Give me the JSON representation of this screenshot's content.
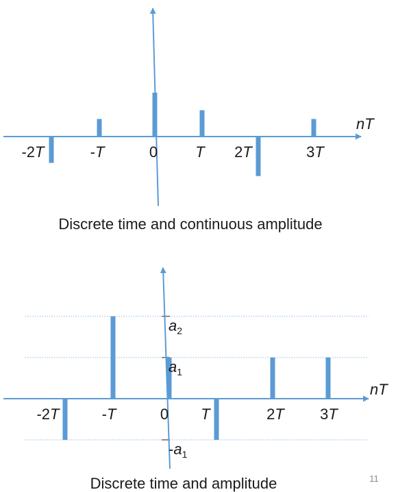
{
  "colors": {
    "axis": "#5b9bd5",
    "bar": "#5b9bd5",
    "level_line": "#8fb8e0",
    "text": "#1a1a1a"
  },
  "figure1": {
    "axis_label": "nT",
    "tick_labels": [
      {
        "pre": "-2",
        "it": "T"
      },
      {
        "pre": "-",
        "it": "T"
      },
      {
        "pre": "0",
        "it": ""
      },
      {
        "pre": "",
        "it": "T"
      },
      {
        "pre": "2",
        "it": "T"
      },
      {
        "pre": "3",
        "it": "T"
      }
    ],
    "samples": [
      {
        "n": -2,
        "value": -0.6
      },
      {
        "n": -1,
        "value": 0.4
      },
      {
        "n": 0,
        "value": 1.0
      },
      {
        "n": 1,
        "value": 0.6
      },
      {
        "n": 2,
        "value": -0.9
      },
      {
        "n": 3,
        "value": 0.4
      }
    ],
    "caption": "Discrete time and continuous amplitude"
  },
  "figure2": {
    "axis_label": "nT",
    "tick_labels": [
      {
        "pre": "-2",
        "it": "T"
      },
      {
        "pre": "-",
        "it": "T"
      },
      {
        "pre": "0",
        "it": ""
      },
      {
        "pre": "",
        "it": "T"
      },
      {
        "pre": "2",
        "it": "T"
      },
      {
        "pre": "3",
        "it": "T"
      }
    ],
    "levels": [
      {
        "name": "a2",
        "value": 2,
        "base": "a",
        "sub": "2",
        "prefix": ""
      },
      {
        "name": "a1",
        "value": 1,
        "base": "a",
        "sub": "1",
        "prefix": ""
      },
      {
        "name": "neg-a1",
        "value": -1,
        "base": "a",
        "sub": "1",
        "prefix": "-"
      }
    ],
    "samples": [
      {
        "n": -2,
        "value": -1
      },
      {
        "n": -1,
        "value": 2
      },
      {
        "n": 0,
        "value": 1
      },
      {
        "n": 1,
        "value": -1
      },
      {
        "n": 2,
        "value": 1
      },
      {
        "n": 3,
        "value": 1
      }
    ],
    "caption": "Discrete time and amplitude"
  },
  "page_number": "11"
}
